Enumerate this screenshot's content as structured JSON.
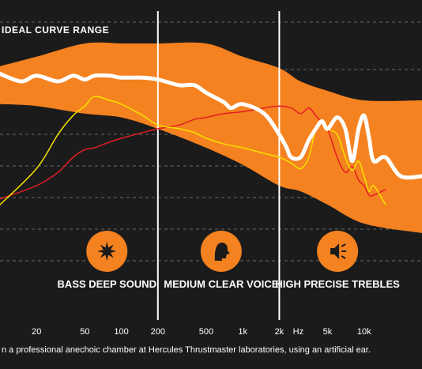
{
  "chart_data": {
    "type": "line",
    "x_scale": "log",
    "xlim": [
      10,
      30000
    ],
    "x_unit": "Hz",
    "x_tick_labels": [
      {
        "value": 20,
        "label": "20"
      },
      {
        "value": 50,
        "label": "50"
      },
      {
        "value": 100,
        "label": "100"
      },
      {
        "value": 200,
        "label": "200"
      },
      {
        "value": 500,
        "label": "500"
      },
      {
        "value": 1000,
        "label": "1k"
      },
      {
        "value": 2000,
        "label": "2k"
      },
      {
        "value": 5000,
        "label": "5k"
      },
      {
        "value": 10000,
        "label": "10k"
      }
    ],
    "ideal_range": {
      "label": "IDEAL CURVE RANGE",
      "x": [
        10,
        20,
        50,
        100,
        200,
        500,
        1000,
        2000,
        3000,
        5000,
        10000,
        30000
      ],
      "upper": [
        0.88,
        0.93,
        1.0,
        1.0,
        1.0,
        1.0,
        0.93,
        0.87,
        0.8,
        0.75,
        0.7,
        0.7
      ],
      "lower": [
        0.68,
        0.67,
        0.63,
        0.61,
        0.55,
        0.45,
        0.36,
        0.25,
        0.22,
        0.15,
        0.05,
        0.0
      ]
    },
    "bands": [
      {
        "title": "BASS DEEP SOUND",
        "icon": "explosion-icon"
      },
      {
        "title": "MEDIUM CLEAR VOICE",
        "icon": "head-speaking-icon"
      },
      {
        "title": "HIGH PRECISE TREBLES",
        "icon": "speaker-icon"
      }
    ],
    "band_dividers": [
      200,
      2000
    ],
    "series": [
      {
        "color": "#ffffff",
        "x": [
          10,
          15,
          20,
          30,
          40,
          50,
          60,
          80,
          100,
          150,
          200,
          300,
          400,
          500,
          700,
          800,
          1000,
          1500,
          2000,
          2300,
          2500,
          3000,
          3500,
          4000,
          4500,
          5000,
          6000,
          7000,
          8000,
          9000,
          10000,
          11000,
          12000,
          15000,
          20000,
          30000
        ],
        "y": [
          0.84,
          0.8,
          0.83,
          0.8,
          0.83,
          0.81,
          0.83,
          0.83,
          0.82,
          0.82,
          0.81,
          0.78,
          0.78,
          0.74,
          0.69,
          0.66,
          0.68,
          0.63,
          0.52,
          0.45,
          0.4,
          0.4,
          0.49,
          0.55,
          0.59,
          0.55,
          0.61,
          0.55,
          0.38,
          0.55,
          0.62,
          0.5,
          0.38,
          0.4,
          0.3,
          0.3
        ]
      },
      {
        "color": "#f5e000",
        "x": [
          10,
          20,
          30,
          40,
          50,
          60,
          80,
          100,
          150,
          200,
          300,
          400,
          500,
          700,
          1000,
          1500,
          2000,
          2500,
          3000,
          3500,
          4000,
          4500,
          5000,
          6000,
          7000,
          8000,
          9000,
          10000,
          11000,
          12000,
          15000
        ],
        "y": [
          0.15,
          0.34,
          0.52,
          0.62,
          0.67,
          0.72,
          0.7,
          0.68,
          0.62,
          0.57,
          0.55,
          0.53,
          0.5,
          0.47,
          0.45,
          0.42,
          0.4,
          0.37,
          0.34,
          0.4,
          0.55,
          0.58,
          0.55,
          0.52,
          0.4,
          0.33,
          0.38,
          0.3,
          0.22,
          0.25,
          0.15
        ]
      },
      {
        "color": "#e31e24",
        "x": [
          10,
          20,
          30,
          40,
          50,
          60,
          80,
          100,
          150,
          200,
          300,
          400,
          500,
          700,
          1000,
          1500,
          2000,
          2500,
          3000,
          3500,
          4000,
          4500,
          5000,
          6000,
          7000,
          8000,
          9000,
          10000,
          11000,
          12000,
          15000
        ],
        "y": [
          0.18,
          0.25,
          0.32,
          0.4,
          0.44,
          0.45,
          0.48,
          0.5,
          0.53,
          0.55,
          0.57,
          0.6,
          0.61,
          0.63,
          0.64,
          0.66,
          0.67,
          0.66,
          0.63,
          0.66,
          0.62,
          0.58,
          0.55,
          0.4,
          0.32,
          0.35,
          0.28,
          0.25,
          0.2,
          0.2,
          0.23
        ]
      }
    ],
    "caption": "n a professional anechoic chamber at Hercules Thrustmaster laboratories, using an artificial ear.",
    "colors": {
      "background": "#1b1b1b",
      "range_fill": "#f58220",
      "grid": "#6a6a6a",
      "divider": "#ffffff",
      "icon_circle": "#f58220"
    }
  }
}
